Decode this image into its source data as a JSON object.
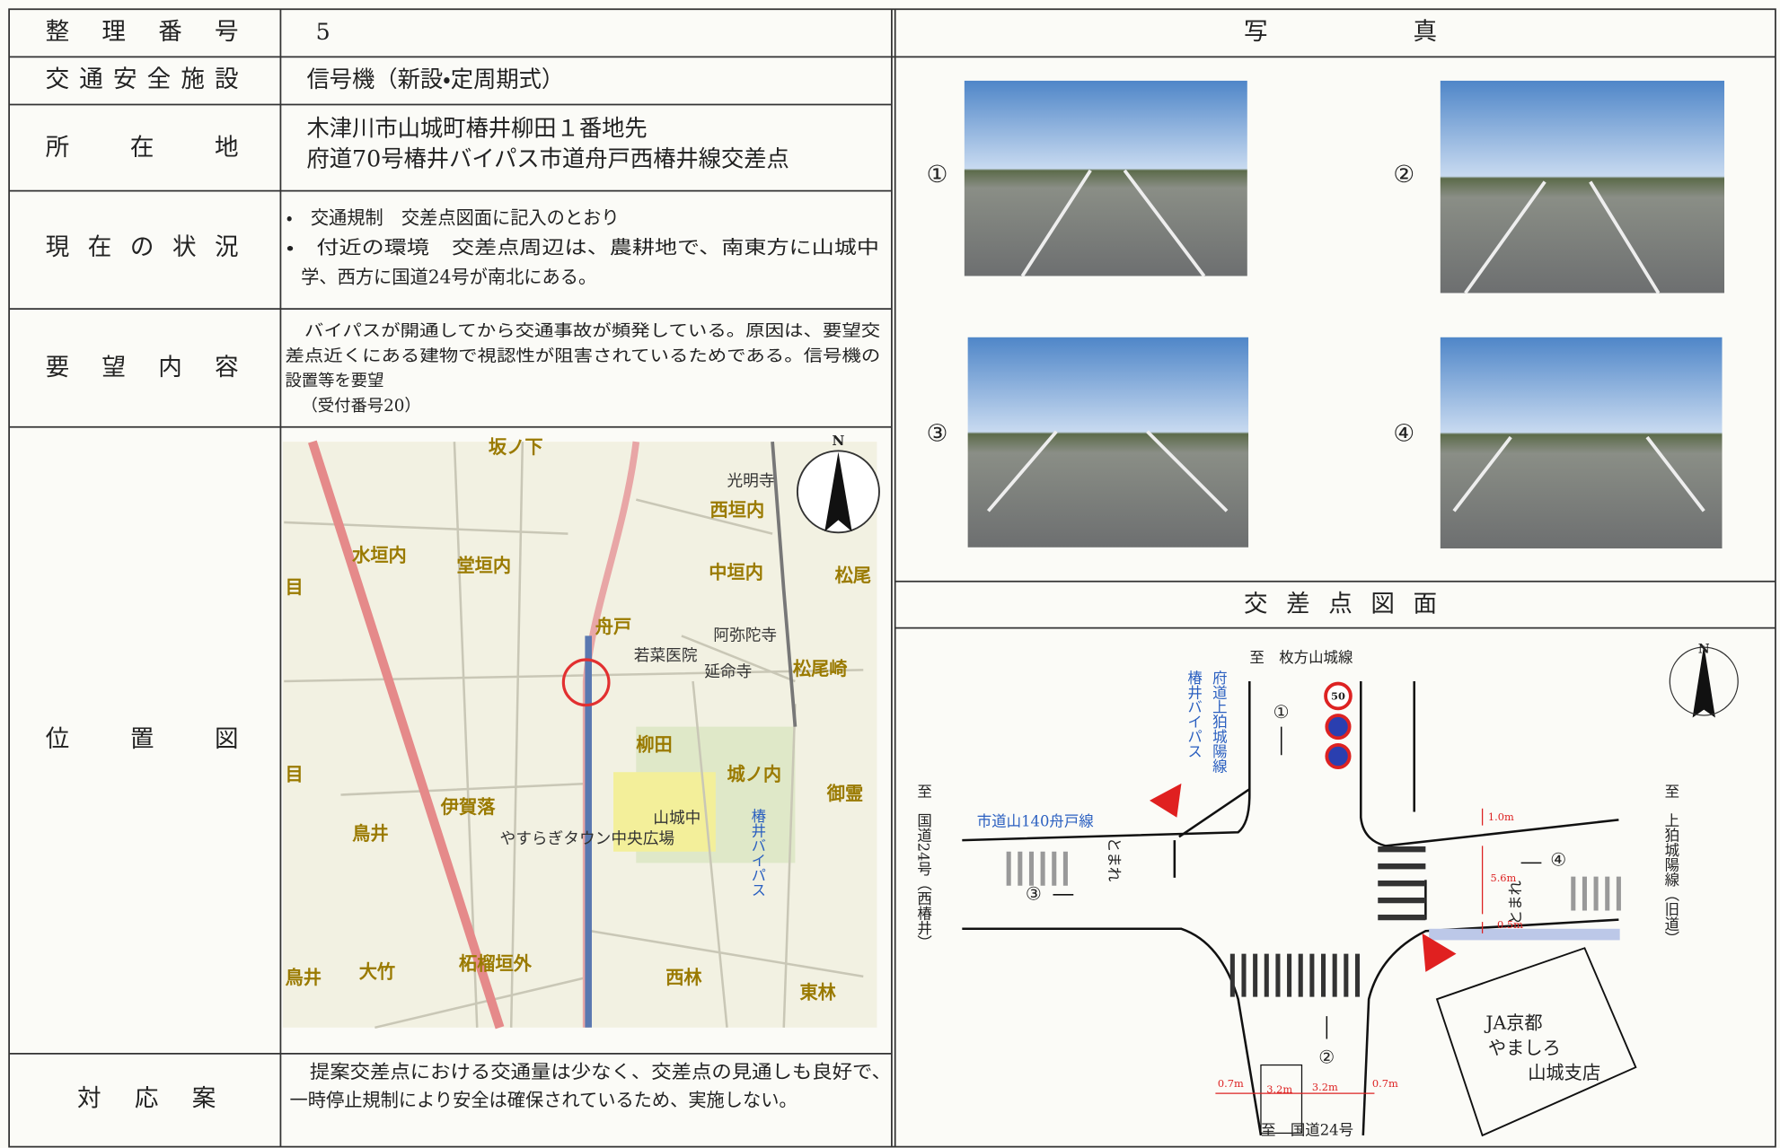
{
  "table": {
    "rows": [
      {
        "label": "整理番号",
        "value": "5"
      },
      {
        "label": "交通安全施設",
        "value": "信号機（新設・定周期式）"
      },
      {
        "label": "所在地",
        "lines": [
          "木津川市山城町椿井柳田１番地先",
          "府道70号椿井バイパス市道舟戸西椿井線交差点"
        ]
      },
      {
        "label": "現在の状況",
        "lines": [
          "・　交通規制　交差点図面に記入のとおり",
          "・　付近の環境　交差点周辺は、農耕地で、南東方に山城中",
          "学、西方に国道24号が南北にある。"
        ]
      },
      {
        "label": "要望内容",
        "lines": [
          "　バイパスが開通してから交通事故が頻発している。原因は、要望交",
          "差点近くにある建物で視認性が阻害されているためである。信号機の",
          "設置等を要望",
          "　（受付番号20）"
        ]
      },
      {
        "label": "位置図"
      },
      {
        "label": "対応案",
        "lines": [
          "　提案交差点における交通量は少なく、交差点の見通しも良好で、",
          "一時停止規制により安全は確保されているため、実施しない。"
        ]
      }
    ]
  },
  "photos": {
    "title": "写真",
    "labels": [
      "①",
      "②",
      "③",
      "④"
    ]
  },
  "map": {
    "north": "N",
    "labels": [
      "坂ノ下",
      "光明寺",
      "西垣内",
      "水垣内",
      "堂垣内",
      "中垣内",
      "松尾",
      "舟戸",
      "若菜医院",
      "阿弥陀寺",
      "延命寺",
      "松尾崎",
      "柳田",
      "城ノ内",
      "御霊",
      "伊賀落",
      "鳥井",
      "山城中",
      "やすらぎタウン中央広場",
      "椿井バイパス",
      "大竹",
      "柘榴垣外",
      "西林",
      "東林",
      "目",
      "目",
      "鳥井"
    ]
  },
  "diagram": {
    "title": "交差点図面",
    "north": "N",
    "labels": [
      "至　枚方山城線",
      "府道上狛城陽線",
      "椿井バイパス",
      "至　国道24号（西椿井）",
      "市道山140舟戸線",
      "至　上狛城陽線（旧道）",
      "至　国道24号",
      "JA京都",
      "やましろ",
      "山城支店",
      "①",
      "②",
      "③",
      "④",
      "50",
      "とまれ",
      "とまれ"
    ],
    "dimensions": [
      "1.0m",
      "5.6m",
      "0.5m",
      "0.7m",
      "3.2m",
      "3.2m",
      "0.7m"
    ]
  }
}
